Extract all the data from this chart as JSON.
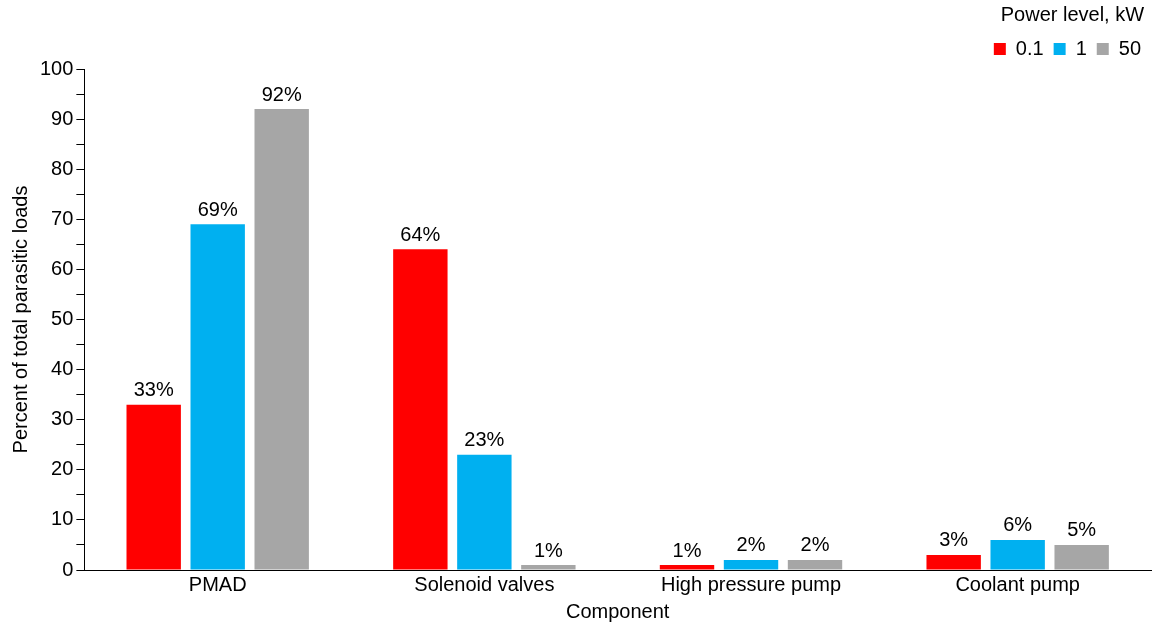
{
  "chart_data": {
    "type": "bar",
    "xlabel": "Component",
    "ylabel": "Percent of total parasitic loads",
    "legend_title": "Power level, kW",
    "categories": [
      "PMAD",
      "Solenoid valves",
      "High pressure pump",
      "Coolant pump"
    ],
    "series": [
      {
        "name": "0.1",
        "color": "#ff0000",
        "values": [
          33,
          64,
          1,
          3
        ],
        "value_labels": [
          "33%",
          "64%",
          "1%",
          "3%"
        ]
      },
      {
        "name": "1",
        "color": "#00b0f0",
        "values": [
          69,
          23,
          2,
          6
        ],
        "value_labels": [
          "69%",
          "23%",
          "2%",
          "6%"
        ]
      },
      {
        "name": "50",
        "color": "#a6a6a6",
        "values": [
          92,
          1,
          2,
          5
        ],
        "value_labels": [
          "92%",
          "1%",
          "2%",
          "5%"
        ]
      }
    ],
    "ylim": [
      0,
      100
    ],
    "yticks": [
      0,
      {
        "value": 5,
        "label": null
      },
      10,
      {
        "value": 15,
        "label": null
      },
      20,
      {
        "value": 25,
        "label": null
      },
      30,
      {
        "value": 35,
        "label": null
      },
      40,
      {
        "value": 45,
        "label": null
      },
      50,
      {
        "value": 55,
        "label": null
      },
      60,
      {
        "value": 65,
        "label": null
      },
      70,
      {
        "value": 75,
        "label": null
      },
      80,
      {
        "value": 85,
        "label": null
      },
      90,
      {
        "value": 95,
        "label": null
      },
      100
    ],
    "grid": false,
    "legend": "top right"
  }
}
